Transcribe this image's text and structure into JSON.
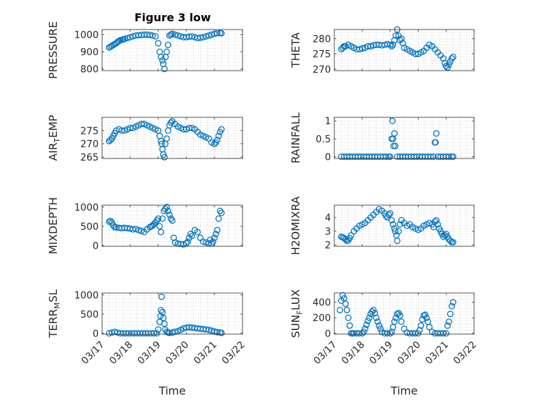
{
  "figure_title": "Figure 3 low",
  "colors": {
    "marker": "#0072BD",
    "axis": "#262626",
    "grid": "#cccccc"
  },
  "chart_data": [
    {
      "type": "scatter",
      "id": "pressure",
      "title": "Figure 3 low",
      "ylabel": "PRESSURE",
      "xlim": [
        "03/17",
        "03/22"
      ],
      "ylim": [
        790,
        1030
      ],
      "yticks": [
        800,
        900,
        1000
      ],
      "grid": true,
      "x_day_positions": [
        0.25,
        0.3,
        0.35,
        0.4,
        0.45,
        0.5,
        0.55,
        0.6,
        0.65,
        0.7,
        0.75,
        0.8,
        0.9,
        1.0,
        1.1,
        1.2,
        1.3,
        1.4,
        1.5,
        1.6,
        1.7,
        1.8,
        1.9,
        2.0,
        2.05,
        2.1,
        2.15,
        2.18,
        2.22,
        2.26,
        2.3,
        2.35,
        2.4,
        2.45,
        2.5,
        2.6,
        2.7,
        2.8,
        2.9,
        3.0,
        3.1,
        3.2,
        3.3,
        3.4,
        3.5,
        3.6,
        3.7,
        3.8,
        3.9,
        4.0,
        4.1,
        4.2,
        4.25
      ],
      "y": [
        925,
        930,
        935,
        940,
        945,
        950,
        958,
        962,
        968,
        970,
        972,
        975,
        980,
        985,
        990,
        995,
        997,
        998,
        1000,
        1000,
        998,
        995,
        990,
        950,
        900,
        870,
        850,
        830,
        800,
        870,
        900,
        940,
        995,
        1000,
        1005,
        1000,
        995,
        990,
        985,
        985,
        988,
        990,
        985,
        980,
        982,
        985,
        990,
        995,
        1000,
        1005,
        1008,
        1010,
        1008
      ]
    },
    {
      "type": "scatter",
      "id": "theta",
      "ylabel": "THETA",
      "xlim": [
        "03/17",
        "03/22"
      ],
      "ylim": [
        269.5,
        283
      ],
      "yticks": [
        270,
        275,
        280
      ],
      "grid": true,
      "x_day_positions": [
        0.25,
        0.3,
        0.35,
        0.4,
        0.5,
        0.6,
        0.7,
        0.8,
        0.9,
        1.0,
        1.1,
        1.2,
        1.3,
        1.4,
        1.5,
        1.6,
        1.7,
        1.8,
        1.9,
        2.0,
        2.05,
        2.1,
        2.15,
        2.2,
        2.25,
        2.3,
        2.35,
        2.4,
        2.45,
        2.5,
        2.6,
        2.7,
        2.8,
        2.9,
        3.0,
        3.1,
        3.2,
        3.3,
        3.4,
        3.5,
        3.6,
        3.7,
        3.8,
        3.9,
        3.95,
        4.0,
        4.05,
        4.1,
        4.15,
        4.2,
        4.25
      ],
      "y": [
        276.5,
        277,
        277.5,
        277.5,
        278,
        277.5,
        277,
        276.5,
        276.5,
        276.8,
        277,
        277.5,
        277.5,
        277.8,
        278,
        278,
        277.8,
        278,
        278.2,
        278,
        277.5,
        278,
        279.5,
        281,
        283,
        281,
        279.5,
        280,
        278.5,
        277,
        276.5,
        276,
        275.5,
        275,
        275,
        275.5,
        276,
        277,
        278,
        277.5,
        276.5,
        275.5,
        274.5,
        273.5,
        272,
        271,
        270.5,
        271.5,
        272.5,
        273.5,
        274
      ]
    },
    {
      "type": "scatter",
      "id": "air_temp",
      "ylabel": "AIR_TEMP",
      "xlim": [
        "03/17",
        "03/22"
      ],
      "ylim": [
        264.5,
        280
      ],
      "yticks": [
        265,
        270,
        275
      ],
      "grid": true,
      "x_day_positions": [
        0.25,
        0.3,
        0.35,
        0.4,
        0.45,
        0.5,
        0.6,
        0.7,
        0.8,
        0.9,
        1.0,
        1.1,
        1.2,
        1.3,
        1.4,
        1.5,
        1.6,
        1.7,
        1.8,
        1.9,
        2.0,
        2.05,
        2.1,
        2.12,
        2.15,
        2.18,
        2.22,
        2.25,
        2.3,
        2.35,
        2.4,
        2.45,
        2.5,
        2.6,
        2.7,
        2.8,
        2.9,
        3.0,
        3.1,
        3.2,
        3.3,
        3.4,
        3.5,
        3.6,
        3.7,
        3.8,
        3.9,
        4.0,
        4.05,
        4.1,
        4.15,
        4.2,
        4.25
      ],
      "y": [
        271,
        271.5,
        272,
        273,
        274,
        275,
        275.5,
        275,
        275,
        275.5,
        276,
        276,
        276.5,
        277,
        277.5,
        277.5,
        277,
        276.5,
        276,
        275.5,
        275,
        273,
        271,
        270,
        268,
        266,
        265,
        270,
        272,
        275,
        277,
        278,
        278.5,
        277.5,
        276.5,
        276,
        275.5,
        275.5,
        276,
        276,
        275.5,
        274.5,
        273.5,
        273,
        272.5,
        272,
        270.5,
        270,
        270.5,
        271.5,
        273,
        274.5,
        275.5
      ]
    },
    {
      "type": "scatter",
      "id": "rainfall",
      "ylabel": "RAINFALL",
      "xlim": [
        "03/17",
        "03/22"
      ],
      "ylim": [
        -0.05,
        1.1
      ],
      "yticks": [
        0,
        0.5,
        1
      ],
      "grid": true,
      "x_day_positions": [
        0.25,
        0.35,
        0.45,
        0.55,
        0.65,
        0.75,
        0.85,
        0.95,
        1.05,
        1.15,
        1.25,
        1.35,
        1.45,
        1.55,
        1.65,
        1.75,
        1.85,
        1.95,
        2.0,
        2.05,
        2.08,
        2.1,
        2.12,
        2.15,
        2.18,
        2.25,
        2.35,
        2.45,
        2.55,
        2.65,
        2.75,
        2.85,
        2.95,
        3.05,
        3.15,
        3.25,
        3.35,
        3.45,
        3.55,
        3.6,
        3.62,
        3.65,
        3.7,
        3.8,
        3.9,
        4.0,
        4.1,
        4.2,
        4.25
      ],
      "y": [
        0,
        0,
        0,
        0,
        0,
        0,
        0,
        0,
        0,
        0,
        0,
        0,
        0,
        0,
        0,
        0,
        0,
        0,
        0,
        0.5,
        1.0,
        0.5,
        0.3,
        0.65,
        0.3,
        0,
        0,
        0,
        0,
        0,
        0,
        0,
        0,
        0,
        0,
        0,
        0,
        0,
        0,
        0.4,
        0.4,
        0.65,
        0,
        0,
        0,
        0,
        0,
        0,
        0
      ]
    },
    {
      "type": "scatter",
      "id": "mixdepth",
      "ylabel": "MIXDEPTH",
      "xlim": [
        "03/17",
        "03/22"
      ],
      "ylim": [
        -20,
        1050
      ],
      "yticks": [
        0,
        500,
        1000
      ],
      "grid": true,
      "x_day_positions": [
        0.25,
        0.3,
        0.35,
        0.4,
        0.45,
        0.5,
        0.6,
        0.7,
        0.8,
        0.9,
        1.0,
        1.1,
        1.2,
        1.3,
        1.4,
        1.5,
        1.6,
        1.7,
        1.75,
        1.8,
        1.85,
        1.9,
        1.95,
        2.0,
        2.05,
        2.1,
        2.15,
        2.2,
        2.25,
        2.3,
        2.35,
        2.4,
        2.45,
        2.5,
        2.55,
        2.6,
        2.7,
        2.8,
        2.9,
        3.0,
        3.05,
        3.1,
        3.15,
        3.2,
        3.3,
        3.4,
        3.5,
        3.6,
        3.7,
        3.8,
        3.85,
        3.9,
        3.95,
        4.0,
        4.05,
        4.1,
        4.15,
        4.2,
        4.25
      ],
      "y": [
        620,
        640,
        600,
        520,
        480,
        470,
        460,
        450,
        460,
        450,
        440,
        420,
        430,
        400,
        380,
        350,
        420,
        480,
        500,
        520,
        560,
        600,
        650,
        700,
        500,
        350,
        700,
        900,
        950,
        1000,
        900,
        800,
        700,
        650,
        200,
        80,
        50,
        40,
        30,
        60,
        100,
        200,
        300,
        250,
        400,
        350,
        200,
        100,
        80,
        60,
        150,
        50,
        100,
        200,
        300,
        400,
        700,
        900,
        850
      ]
    },
    {
      "type": "scatter",
      "id": "h2omixra",
      "ylabel": "H2OMIXRA",
      "xlim": [
        "03/17",
        "03/22"
      ],
      "ylim": [
        1.9,
        4.9
      ],
      "yticks": [
        2,
        3,
        4
      ],
      "grid": true,
      "x_day_positions": [
        0.25,
        0.3,
        0.35,
        0.4,
        0.45,
        0.5,
        0.55,
        0.6,
        0.7,
        0.8,
        0.9,
        1.0,
        1.1,
        1.2,
        1.3,
        1.4,
        1.5,
        1.6,
        1.7,
        1.8,
        1.85,
        1.9,
        1.95,
        2.0,
        2.05,
        2.1,
        2.15,
        2.18,
        2.22,
        2.25,
        2.3,
        2.35,
        2.4,
        2.5,
        2.6,
        2.7,
        2.8,
        2.9,
        3.0,
        3.1,
        3.2,
        3.3,
        3.4,
        3.5,
        3.55,
        3.6,
        3.65,
        3.7,
        3.75,
        3.8,
        3.85,
        3.9,
        3.95,
        4.0,
        4.05,
        4.1,
        4.15,
        4.2,
        4.25
      ],
      "y": [
        2.6,
        2.55,
        2.5,
        2.4,
        2.3,
        2.35,
        2.5,
        2.7,
        3.0,
        3.2,
        3.4,
        3.5,
        3.6,
        3.8,
        4.0,
        4.2,
        4.4,
        4.6,
        4.5,
        4.3,
        4.1,
        4.0,
        4.2,
        4.3,
        3.8,
        3.5,
        3.2,
        3.0,
        2.7,
        2.3,
        3.0,
        3.5,
        3.8,
        3.6,
        3.4,
        3.5,
        3.3,
        3.2,
        3.1,
        3.2,
        3.4,
        3.5,
        3.6,
        3.5,
        3.3,
        3.7,
        3.8,
        3.5,
        3.2,
        3.0,
        2.8,
        2.6,
        2.7,
        2.8,
        2.6,
        2.4,
        2.3,
        2.2,
        2.2
      ]
    },
    {
      "type": "scatter",
      "id": "terr_msl",
      "ylabel": "TERR_MSL",
      "xlim": [
        "03/17",
        "03/22"
      ],
      "ylim": [
        -20,
        1050
      ],
      "yticks": [
        0,
        500,
        1000
      ],
      "grid": true,
      "x_tick_labels": [
        "03/17",
        "03/18",
        "03/19",
        "03/20",
        "03/21",
        "03/22"
      ],
      "xlabel": "Time",
      "x_day_positions": [
        0.25,
        0.35,
        0.45,
        0.55,
        0.65,
        0.75,
        0.85,
        0.95,
        1.05,
        1.15,
        1.25,
        1.35,
        1.45,
        1.55,
        1.65,
        1.75,
        1.85,
        1.95,
        2.0,
        2.05,
        2.08,
        2.1,
        2.12,
        2.15,
        2.18,
        2.22,
        2.25,
        2.3,
        2.35,
        2.4,
        2.5,
        2.6,
        2.7,
        2.8,
        2.9,
        3.0,
        3.1,
        3.2,
        3.3,
        3.4,
        3.5,
        3.6,
        3.7,
        3.8,
        3.9,
        4.0,
        4.1,
        4.2,
        4.25
      ],
      "y": [
        0,
        20,
        40,
        20,
        0,
        0,
        0,
        0,
        0,
        0,
        0,
        0,
        0,
        0,
        0,
        0,
        0,
        0,
        100,
        300,
        450,
        600,
        950,
        550,
        400,
        250,
        100,
        40,
        20,
        10,
        20,
        40,
        60,
        90,
        130,
        150,
        160,
        150,
        140,
        130,
        120,
        110,
        100,
        90,
        70,
        50,
        30,
        20,
        10
      ]
    },
    {
      "type": "scatter",
      "id": "sun_flux",
      "ylabel": "SUN_FLUX",
      "xlim": [
        "03/17",
        "03/22"
      ],
      "ylim": [
        -10,
        520
      ],
      "yticks": [
        0,
        200,
        400
      ],
      "grid": true,
      "x_tick_labels": [
        "03/17",
        "03/18",
        "03/19",
        "03/20",
        "03/21",
        "03/22"
      ],
      "xlabel": "Time",
      "x_day_positions": [
        0.2,
        0.25,
        0.3,
        0.35,
        0.4,
        0.45,
        0.5,
        0.55,
        0.6,
        0.65,
        0.7,
        0.8,
        0.9,
        1.0,
        1.05,
        1.1,
        1.15,
        1.2,
        1.25,
        1.3,
        1.35,
        1.4,
        1.45,
        1.5,
        1.55,
        1.6,
        1.65,
        1.7,
        1.8,
        1.9,
        2.0,
        2.05,
        2.1,
        2.15,
        2.2,
        2.25,
        2.3,
        2.35,
        2.4,
        2.5,
        2.6,
        2.7,
        2.8,
        2.9,
        3.0,
        3.05,
        3.1,
        3.15,
        3.2,
        3.25,
        3.3,
        3.35,
        3.4,
        3.5,
        3.6,
        3.7,
        3.8,
        3.9,
        4.0,
        4.05,
        4.1,
        4.15,
        4.2,
        4.25
      ],
      "y": [
        300,
        420,
        490,
        450,
        380,
        300,
        200,
        100,
        0,
        0,
        0,
        0,
        0,
        0,
        20,
        60,
        110,
        160,
        200,
        250,
        280,
        300,
        260,
        200,
        150,
        100,
        60,
        20,
        0,
        0,
        0,
        20,
        80,
        150,
        200,
        250,
        260,
        230,
        150,
        60,
        10,
        0,
        0,
        0,
        0,
        40,
        100,
        180,
        230,
        240,
        200,
        150,
        80,
        20,
        0,
        0,
        0,
        0,
        0,
        100,
        150,
        250,
        350,
        400
      ]
    }
  ]
}
